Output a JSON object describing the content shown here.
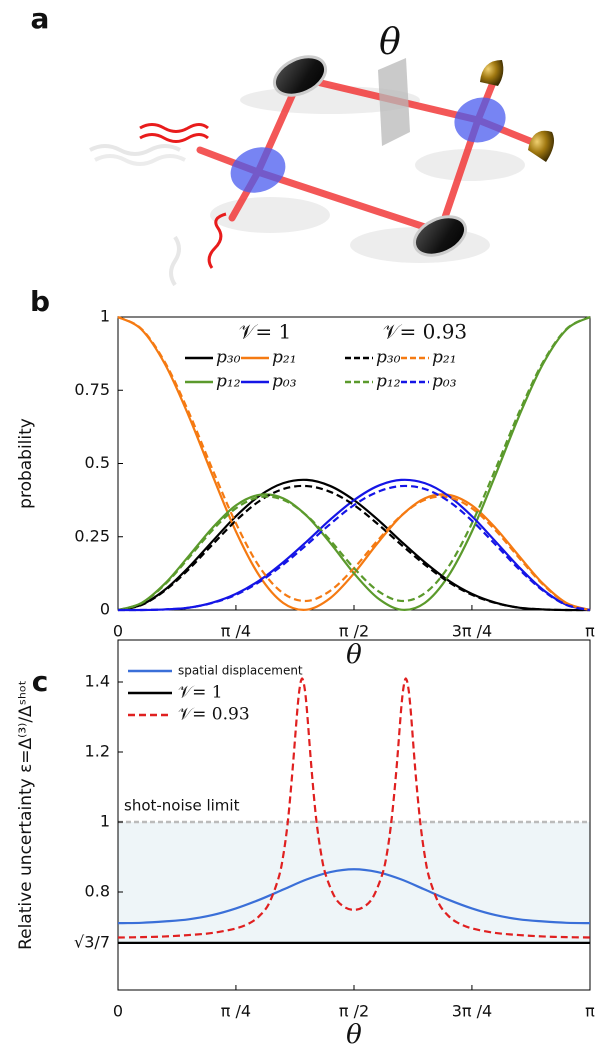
{
  "panel_labels": [
    "a",
    "b",
    "c"
  ],
  "diagram": {
    "phase_label": "θ"
  },
  "chart_data": [
    {
      "type": "line",
      "xlabel": "θ",
      "ylabel": "probability",
      "x": [
        0,
        0.157,
        0.314,
        0.471,
        0.628,
        0.785,
        0.942,
        1.1,
        1.257,
        1.414,
        1.571,
        1.728,
        1.885,
        2.042,
        2.199,
        2.356,
        2.513,
        2.67,
        2.827,
        2.985,
        3.142
      ],
      "xlim": [
        0,
        3.142
      ],
      "xticks": [
        0,
        {
          "value": 0.785,
          "label": "π /4"
        },
        {
          "value": 1.571,
          "label": "π /2"
        },
        {
          "value": 2.356,
          "label": "3π /4"
        },
        {
          "value": 3.142,
          "label": "π"
        }
      ],
      "ylim": [
        0,
        1
      ],
      "yticks": [
        0,
        0.25,
        0.5,
        0.75,
        1
      ],
      "legend_titles": [
        "𝒱= 1",
        "𝒱= 0.93"
      ],
      "series": [
        {
          "name": "p₃₀",
          "color": "#000000",
          "dashed": false,
          "values": [
            0,
            0.018,
            0.07,
            0.146,
            0.234,
            0.32,
            0.39,
            0.433,
            0.444,
            0.423,
            0.375,
            0.309,
            0.234,
            0.163,
            0.101,
            0.055,
            0.025,
            0.008,
            0.002,
            0,
            0
          ]
        },
        {
          "name": "p₂₁",
          "color": "#f57a12",
          "dashed": false,
          "values": [
            1,
            0.957,
            0.838,
            0.662,
            0.461,
            0.268,
            0.116,
            0.024,
            0.001,
            0.041,
            0.125,
            0.228,
            0.321,
            0.381,
            0.393,
            0.357,
            0.28,
            0.184,
            0.091,
            0.024,
            0
          ]
        },
        {
          "name": "p₁₂",
          "color": "#5b9a2c",
          "dashed": false,
          "values": [
            0,
            0.024,
            0.091,
            0.184,
            0.28,
            0.357,
            0.393,
            0.381,
            0.321,
            0.228,
            0.125,
            0.041,
            0.001,
            0.024,
            0.116,
            0.268,
            0.461,
            0.662,
            0.838,
            0.957,
            1
          ]
        },
        {
          "name": "p₀₃",
          "color": "#1515e6",
          "dashed": false,
          "values": [
            0,
            0,
            0.002,
            0.008,
            0.025,
            0.055,
            0.101,
            0.163,
            0.234,
            0.309,
            0.375,
            0.423,
            0.444,
            0.433,
            0.39,
            0.32,
            0.234,
            0.146,
            0.07,
            0.018,
            0
          ]
        },
        {
          "name": "p₃₀",
          "color": "#000000",
          "dashed": true,
          "values": [
            0,
            0.017,
            0.067,
            0.139,
            0.223,
            0.305,
            0.372,
            0.413,
            0.423,
            0.403,
            0.358,
            0.294,
            0.223,
            0.155,
            0.096,
            0.052,
            0.024,
            0.008,
            0.002,
            0,
            0
          ]
        },
        {
          "name": "p₂₁",
          "color": "#f57a12",
          "dashed": true,
          "values": [
            1,
            0.959,
            0.844,
            0.675,
            0.481,
            0.296,
            0.147,
            0.057,
            0.031,
            0.066,
            0.143,
            0.237,
            0.322,
            0.376,
            0.385,
            0.347,
            0.272,
            0.178,
            0.088,
            0.023,
            0
          ]
        },
        {
          "name": "p₁₂",
          "color": "#5b9a2c",
          "dashed": true,
          "values": [
            0,
            0.023,
            0.088,
            0.178,
            0.272,
            0.347,
            0.385,
            0.376,
            0.322,
            0.237,
            0.143,
            0.066,
            0.031,
            0.057,
            0.147,
            0.296,
            0.481,
            0.675,
            0.844,
            0.959,
            1
          ]
        },
        {
          "name": "p₀₃",
          "color": "#1515e6",
          "dashed": true,
          "values": [
            0,
            0,
            0.002,
            0.008,
            0.024,
            0.052,
            0.096,
            0.155,
            0.223,
            0.294,
            0.358,
            0.403,
            0.423,
            0.413,
            0.372,
            0.305,
            0.223,
            0.139,
            0.067,
            0.017,
            0
          ]
        }
      ]
    },
    {
      "type": "line",
      "xlabel": "θ",
      "ylabel": "Relative uncertainty ε=Δ⁽³⁾/Δˢʰᵒᵗ",
      "xlim": [
        0,
        3.142
      ],
      "xticks": [
        0,
        {
          "value": 0.785,
          "label": "π /4"
        },
        {
          "value": 1.571,
          "label": "π /2"
        },
        {
          "value": 2.356,
          "label": "3π /4"
        },
        {
          "value": 3.142,
          "label": "π"
        }
      ],
      "ylim": [
        0.52,
        1.52
      ],
      "yticks": [
        {
          "value": 0.6547,
          "label": "√3/7"
        },
        0.8,
        1,
        1.2,
        1.4
      ],
      "reference_lines": [
        {
          "value": 1,
          "label": "shot-noise limit",
          "color": "#bbbbbb"
        }
      ],
      "series": [
        {
          "name": "spatial displacement",
          "color": "#3a6fd8",
          "dashed": false,
          "x": [
            0,
            0.157,
            0.314,
            0.471,
            0.628,
            0.785,
            0.942,
            1.1,
            1.257,
            1.414,
            1.571,
            1.728,
            1.885,
            2.042,
            2.199,
            2.356,
            2.513,
            2.67,
            2.827,
            2.985,
            3.142
          ],
          "values": [
            0.711,
            0.712,
            0.716,
            0.722,
            0.734,
            0.753,
            0.778,
            0.807,
            0.836,
            0.857,
            0.865,
            0.857,
            0.836,
            0.807,
            0.778,
            0.753,
            0.734,
            0.722,
            0.716,
            0.712,
            0.711
          ]
        },
        {
          "name": "𝒱= 1",
          "color": "#000000",
          "dashed": false,
          "x": [
            0,
            3.142
          ],
          "values": [
            0.6547,
            0.6547
          ]
        },
        {
          "name": "𝒱= 0.93",
          "color": "#e02020",
          "dashed": true,
          "x": [
            0,
            0.157,
            0.314,
            0.471,
            0.628,
            0.785,
            0.88,
            0.942,
            1.005,
            1.068,
            1.1,
            1.131,
            1.162,
            1.194,
            1.21,
            1.225,
            1.241,
            1.257,
            1.288,
            1.319,
            1.351,
            1.382,
            1.445,
            1.508,
            1.571,
            1.634,
            1.696,
            1.759,
            1.791,
            1.822,
            1.854,
            1.885,
            1.901,
            1.916,
            1.932,
            1.948,
            1.979,
            2.011,
            2.042,
            2.073,
            2.136,
            2.199,
            2.262,
            2.356,
            2.513,
            2.67,
            2.827,
            2.985,
            3.142
          ],
          "values": [
            0.67,
            0.671,
            0.673,
            0.677,
            0.683,
            0.696,
            0.712,
            0.732,
            0.767,
            0.839,
            0.904,
            1.003,
            1.149,
            1.321,
            1.385,
            1.41,
            1.386,
            1.323,
            1.153,
            1.01,
            0.912,
            0.85,
            0.784,
            0.757,
            0.749,
            0.757,
            0.784,
            0.85,
            0.912,
            1.01,
            1.153,
            1.323,
            1.386,
            1.41,
            1.385,
            1.321,
            1.149,
            1.003,
            0.904,
            0.839,
            0.767,
            0.732,
            0.712,
            0.696,
            0.683,
            0.677,
            0.673,
            0.671,
            0.67
          ]
        }
      ]
    }
  ]
}
